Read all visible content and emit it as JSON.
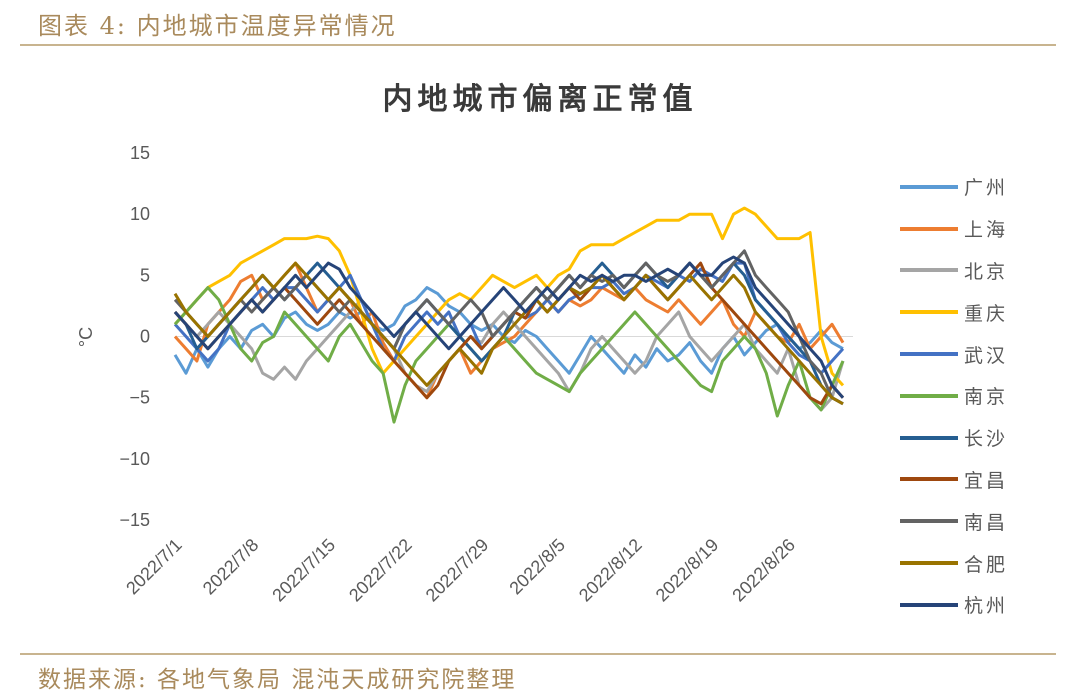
{
  "figure": {
    "caption": "图表 4:  内地城市温度异常情况",
    "source": "数据来源:  各地气象局  混沌天成研究院整理"
  },
  "chart_data": {
    "type": "line",
    "title": "内地城市偏离正常值",
    "xlabel": "",
    "ylabel": "°C",
    "ylim": [
      -15,
      15
    ],
    "yticks": [
      15,
      10,
      5,
      0,
      -5,
      -10,
      -15
    ],
    "ytick_labels": [
      "15",
      "10",
      "5",
      "0",
      "−5",
      "−10",
      "−15"
    ],
    "xtick_labels": [
      "2022/7/1",
      "2022/7/8",
      "2022/7/15",
      "2022/7/22",
      "2022/7/29",
      "2022/8/5",
      "2022/8/12",
      "2022/8/19",
      "2022/8/26"
    ],
    "x_start": "2022/7/1",
    "x_end": "2022/8/31",
    "grid": false,
    "zero_line": true,
    "legend_position": "right",
    "series": [
      {
        "name": "广州",
        "color": "#5b9bd5",
        "values": [
          -1.5,
          -3,
          -1,
          -2.5,
          -1,
          0,
          -1,
          0.5,
          1,
          0,
          1.5,
          2,
          1,
          0.5,
          1,
          2,
          1.5,
          2,
          1,
          0.5,
          1,
          2.5,
          3,
          4,
          3.5,
          2.5,
          2,
          1,
          0.5,
          1,
          0,
          -0.5,
          0.5,
          0,
          -1,
          -2,
          -3,
          -1.5,
          0,
          -1,
          -2,
          -3,
          -1.5,
          -2.5,
          -1,
          -2,
          -1.5,
          -0.5,
          -2,
          -3,
          -1,
          0,
          -1.5,
          -0.5,
          0.5,
          1,
          0,
          -1,
          -0.5,
          0.5,
          -0.5,
          -1
        ]
      },
      {
        "name": "上海",
        "color": "#ed7d31",
        "values": [
          0,
          -1,
          -2,
          1,
          2,
          3,
          4.5,
          5,
          3,
          4,
          5,
          6,
          4,
          2,
          3,
          4,
          3,
          1,
          2,
          -0.5,
          -2,
          -3,
          -4,
          -5,
          -3,
          -2,
          -1,
          -3,
          -2,
          -1,
          -0.5,
          0,
          1,
          2,
          3,
          2,
          3,
          2.5,
          3,
          4,
          3.5,
          3,
          4,
          3,
          2.5,
          2,
          3,
          2,
          1,
          2,
          3,
          1,
          0,
          2,
          1,
          0,
          -0.5,
          1,
          -1,
          0,
          1,
          -0.5
        ]
      },
      {
        "name": "北京",
        "color": "#a5a5a5",
        "values": [
          2,
          1,
          0,
          1,
          2,
          1,
          0,
          -1,
          -3,
          -3.5,
          -2.5,
          -3.5,
          -2,
          -1,
          0,
          1,
          2,
          3,
          1,
          0,
          -1,
          -3,
          -4,
          -4.5,
          -3,
          -2,
          -1,
          0,
          -0.5,
          1,
          2,
          1,
          0,
          -1,
          -2,
          -3,
          -4.5,
          -3,
          -1,
          0,
          -1,
          -2,
          -3,
          -2,
          0,
          1,
          2,
          0,
          -1,
          -2,
          -1,
          0,
          1,
          -1,
          -2,
          -3,
          -1,
          -4,
          -5,
          -6,
          -5,
          -2
        ]
      },
      {
        "name": "重庆",
        "color": "#ffc000",
        "values": [
          1,
          2,
          3,
          4,
          4.5,
          5,
          6,
          6.5,
          7,
          7.5,
          8,
          8,
          8,
          8.2,
          8,
          7,
          5,
          2,
          -1,
          -3,
          -2,
          -1,
          0,
          1,
          2,
          3,
          3.5,
          3,
          4,
          5,
          4.5,
          4,
          4.5,
          5,
          4,
          5,
          5.5,
          7,
          7.5,
          7.5,
          7.5,
          8,
          8.5,
          9,
          9.5,
          9.5,
          9.5,
          10,
          10,
          10,
          8,
          10,
          10.5,
          10,
          9,
          8,
          8,
          8,
          8.5,
          0,
          -3,
          -4
        ]
      },
      {
        "name": "武汉",
        "color": "#4472c4",
        "values": [
          1,
          0,
          -1,
          -2,
          -1,
          1,
          2,
          3,
          4,
          3,
          4,
          4,
          3,
          2,
          3,
          4,
          5,
          3,
          1,
          -1,
          -2,
          0,
          1,
          2,
          1,
          2,
          0,
          1,
          -1,
          0,
          1,
          2,
          1.5,
          2,
          3,
          2,
          3,
          3.5,
          4,
          4,
          4.5,
          3.5,
          4,
          5,
          4.5,
          4,
          5,
          4.5,
          5.5,
          5,
          4.5,
          6,
          6,
          3,
          2,
          1,
          -0.5,
          -1.5,
          -2,
          -3,
          -2,
          -1
        ]
      },
      {
        "name": "南京",
        "color": "#70ad47",
        "values": [
          1,
          2,
          3,
          4,
          3,
          1,
          -1,
          -2,
          -0.5,
          0,
          2,
          1,
          0,
          -1,
          -2,
          0,
          1,
          -0.5,
          -2,
          -3,
          -7,
          -4,
          -2,
          -1,
          0,
          1,
          0,
          -1,
          -2,
          -1,
          0,
          -1,
          -2,
          -3,
          -3.5,
          -4,
          -4.5,
          -3,
          -2,
          -1,
          0,
          1,
          2,
          1,
          0,
          -1,
          -2,
          -3,
          -4,
          -4.5,
          -2,
          -1,
          0,
          -1,
          -3,
          -6.5,
          -4,
          -2,
          -5,
          -6,
          -4,
          -2
        ]
      },
      {
        "name": "长沙",
        "color": "#255e91",
        "values": [
          2,
          1,
          -1,
          0,
          1,
          2,
          3,
          4,
          5,
          4,
          3,
          4,
          5,
          6,
          5,
          4,
          3,
          2,
          1,
          0,
          -1,
          1,
          2,
          3,
          2,
          1,
          0,
          -1,
          -2,
          -1,
          0,
          2,
          3,
          4,
          3,
          4,
          5,
          4,
          5,
          6,
          5,
          4,
          5,
          6,
          5,
          4,
          5,
          6,
          5,
          4,
          5,
          6,
          5,
          3,
          2,
          1,
          0,
          -1,
          -2,
          -4,
          -5,
          -5.5
        ]
      },
      {
        "name": "宜昌",
        "color": "#9e480e",
        "values": [
          2,
          1,
          0,
          -1,
          0,
          1,
          2,
          3,
          2,
          3,
          4,
          3,
          2,
          1,
          2,
          3,
          2,
          1,
          0,
          -1,
          -2,
          -3,
          -4,
          -5,
          -4,
          -2,
          -1,
          0,
          -1,
          0,
          1,
          2,
          1.5,
          3,
          2,
          3,
          4,
          3,
          4,
          5,
          4,
          3,
          4,
          5,
          4,
          3,
          4,
          5,
          6,
          4,
          3,
          2,
          1,
          0,
          -1,
          -2,
          -3,
          -4,
          -5,
          -5.5,
          -4,
          -5
        ]
      },
      {
        "name": "南昌",
        "color": "#636363",
        "values": [
          3,
          2,
          1,
          0,
          1,
          2,
          3,
          2,
          3,
          4,
          3,
          4,
          5,
          4,
          3,
          2,
          3,
          2,
          1,
          0,
          -1,
          1,
          2,
          3,
          2,
          1,
          2,
          3,
          2,
          0,
          1,
          2,
          3,
          4,
          3,
          4,
          5,
          4,
          5,
          4.5,
          5,
          4,
          5,
          6,
          5,
          4.5,
          5,
          6,
          5,
          4,
          5,
          6,
          7,
          5,
          4,
          3,
          2,
          0,
          -2,
          -3,
          -5,
          -5.5
        ]
      },
      {
        "name": "合肥",
        "color": "#997300",
        "values": [
          3.5,
          2,
          1,
          0,
          1,
          2,
          3,
          4,
          5,
          4,
          5,
          6,
          5,
          4,
          3,
          4,
          3,
          2,
          1,
          0,
          -1,
          -2,
          -3,
          -4,
          -3,
          -2,
          -1,
          -2,
          -3,
          -1,
          0,
          1,
          2,
          3,
          2,
          3,
          4,
          3.5,
          4,
          5,
          4,
          3,
          4,
          5,
          4,
          3,
          4,
          5,
          4,
          3,
          4,
          5,
          4,
          2,
          1,
          0,
          -1,
          -2,
          -3,
          -4,
          -5,
          -5.5
        ]
      },
      {
        "name": "杭州",
        "color": "#264478",
        "values": [
          2,
          1,
          0,
          -1,
          0,
          1,
          2,
          3,
          2,
          3,
          4,
          5,
          4,
          5,
          6,
          5.5,
          4,
          3,
          2,
          1,
          0,
          1,
          2,
          1,
          0,
          -1,
          0,
          1,
          2,
          3,
          4,
          3,
          2,
          3,
          4,
          3,
          4,
          5,
          4.5,
          5,
          4.5,
          5,
          5,
          4.5,
          5,
          5.5,
          5,
          6,
          5,
          5,
          6,
          6.5,
          6,
          4,
          3,
          2,
          1,
          0,
          -1,
          -2,
          -4,
          -5
        ]
      }
    ]
  }
}
